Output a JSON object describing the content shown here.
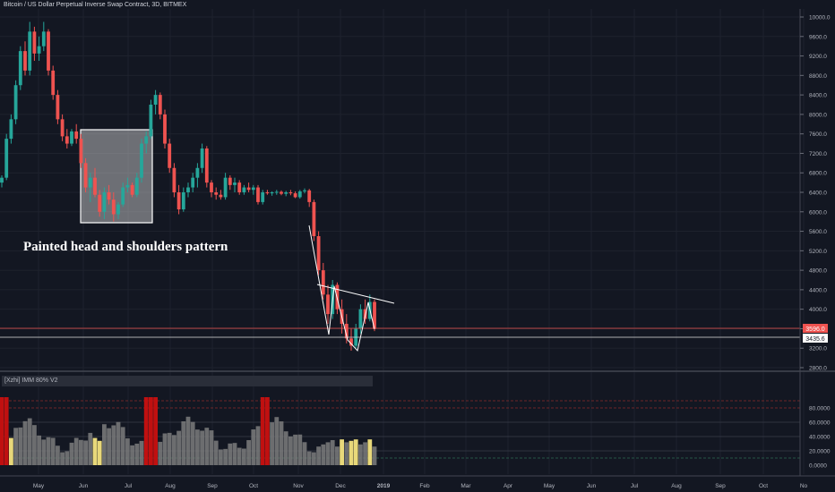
{
  "chart_title": "Bitcoin / US Dollar Perpetual Inverse Swap Contract, 3D, BITMEX",
  "annotation": "Painted head and shoulders pattern",
  "indicator_name": "[Xzhi] IMM 80% V2",
  "price_axis_labels": [
    "10000.0",
    "9600.0",
    "9200.0",
    "8800.0",
    "8400.0",
    "8000.0",
    "7600.0",
    "7200.0",
    "6800.0",
    "6400.0",
    "6000.0",
    "5600.0",
    "5200.0",
    "4800.0",
    "4400.0",
    "4000.0",
    "3600.0",
    "3200.0",
    "2800.0"
  ],
  "price_tags": {
    "current": "3596.0",
    "line": "3435.6"
  },
  "indicator_axis_labels": [
    "80.0000",
    "60.0000",
    "40.0000",
    "20.0000",
    "0.0000"
  ],
  "time_labels": [
    "May",
    "Jun",
    "Jul",
    "Aug",
    "Sep",
    "Oct",
    "Nov",
    "Dec",
    "2019",
    "Feb",
    "Mar",
    "Apr",
    "May",
    "Jun",
    "Jul",
    "Aug",
    "Sep",
    "Oct",
    "No"
  ],
  "colors": {
    "background": "#131722",
    "up": "#26a69a",
    "down": "#ef5350",
    "grid": "#1e222d",
    "volume": "#7d7d7d",
    "highlight_yellow": "#e8d87a",
    "highlight_red": "#c01010"
  },
  "chart_data": {
    "type": "candlestick",
    "y_range": [
      2700,
      10100
    ],
    "candles": [
      [
        6600,
        6750,
        6500,
        6700
      ],
      [
        6700,
        7600,
        6650,
        7500
      ],
      [
        7500,
        8000,
        7400,
        7900
      ],
      [
        7900,
        8700,
        7800,
        8600
      ],
      [
        8600,
        9400,
        8500,
        9300
      ],
      [
        9300,
        9500,
        8800,
        8900
      ],
      [
        8900,
        9900,
        8800,
        9700
      ],
      [
        9700,
        9800,
        9100,
        9250
      ],
      [
        9250,
        9600,
        9100,
        9400
      ],
      [
        9400,
        9900,
        9300,
        9700
      ],
      [
        9700,
        9750,
        8800,
        8900
      ],
      [
        8900,
        9000,
        8300,
        8400
      ],
      [
        8400,
        8500,
        7800,
        7900
      ],
      [
        7900,
        8000,
        7450,
        7550
      ],
      [
        7550,
        7700,
        7300,
        7400
      ],
      [
        7400,
        7700,
        7350,
        7650
      ],
      [
        7650,
        7800,
        7400,
        7500
      ],
      [
        7500,
        7600,
        6900,
        7000
      ],
      [
        7000,
        7100,
        6400,
        6500
      ],
      [
        6500,
        6800,
        6200,
        6700
      ],
      [
        6700,
        6900,
        6300,
        6350
      ],
      [
        6350,
        6450,
        5900,
        6000
      ],
      [
        6000,
        6500,
        5850,
        6400
      ],
      [
        6400,
        6550,
        6150,
        6250
      ],
      [
        6250,
        6400,
        5800,
        5950
      ],
      [
        5950,
        6200,
        5850,
        6150
      ],
      [
        6150,
        6600,
        6100,
        6500
      ],
      [
        6500,
        6700,
        6400,
        6550
      ],
      [
        6550,
        6600,
        6300,
        6350
      ],
      [
        6350,
        6800,
        6300,
        6700
      ],
      [
        6700,
        7500,
        6600,
        7400
      ],
      [
        7400,
        7650,
        7200,
        7550
      ],
      [
        7550,
        8300,
        7500,
        8200
      ],
      [
        8200,
        8500,
        8000,
        8400
      ],
      [
        8400,
        8450,
        7900,
        8000
      ],
      [
        8000,
        8100,
        7300,
        7400
      ],
      [
        7400,
        7500,
        6800,
        6900
      ],
      [
        6900,
        7000,
        6300,
        6400
      ],
      [
        6400,
        6550,
        5950,
        6050
      ],
      [
        6050,
        6500,
        6000,
        6400
      ],
      [
        6400,
        6600,
        6300,
        6500
      ],
      [
        6500,
        6800,
        6400,
        6700
      ],
      [
        6700,
        7000,
        6500,
        6900
      ],
      [
        6900,
        7400,
        6800,
        7300
      ],
      [
        7300,
        7350,
        6500,
        6600
      ],
      [
        6600,
        6650,
        6300,
        6400
      ],
      [
        6400,
        6500,
        6250,
        6350
      ],
      [
        6350,
        6450,
        6250,
        6300
      ],
      [
        6300,
        6800,
        6250,
        6700
      ],
      [
        6700,
        6750,
        6450,
        6550
      ],
      [
        6550,
        6700,
        6400,
        6600
      ],
      [
        6600,
        6650,
        6350,
        6400
      ],
      [
        6400,
        6550,
        6350,
        6500
      ],
      [
        6500,
        6600,
        6400,
        6450
      ],
      [
        6450,
        6550,
        6350,
        6500
      ],
      [
        6500,
        6550,
        6150,
        6200
      ],
      [
        6200,
        6450,
        6150,
        6400
      ],
      [
        6400,
        6450,
        6350,
        6380
      ],
      [
        6380,
        6420,
        6330,
        6400
      ],
      [
        6400,
        6450,
        6350,
        6410
      ],
      [
        6410,
        6440,
        6340,
        6370
      ],
      [
        6370,
        6430,
        6320,
        6400
      ],
      [
        6400,
        6450,
        6340,
        6380
      ],
      [
        6380,
        6420,
        6280,
        6300
      ],
      [
        6300,
        6450,
        6270,
        6420
      ],
      [
        6420,
        6480,
        6380,
        6440
      ],
      [
        6440,
        6470,
        6100,
        6200
      ],
      [
        6200,
        6250,
        5400,
        5500
      ],
      [
        5500,
        5600,
        4700,
        4800
      ],
      [
        4800,
        4950,
        4200,
        4300
      ],
      [
        4300,
        4500,
        3700,
        3900
      ],
      [
        3900,
        4600,
        3800,
        4500
      ],
      [
        4500,
        4550,
        3900,
        4000
      ],
      [
        4000,
        4200,
        3500,
        3700
      ],
      [
        3700,
        3900,
        3300,
        3400
      ],
      [
        3400,
        3600,
        3150,
        3250
      ],
      [
        3250,
        3700,
        3200,
        3600
      ],
      [
        3600,
        4100,
        3500,
        4000
      ],
      [
        4000,
        4200,
        3700,
        3800
      ],
      [
        3800,
        4300,
        3750,
        4150
      ],
      [
        4150,
        4200,
        3550,
        3596
      ]
    ]
  }
}
